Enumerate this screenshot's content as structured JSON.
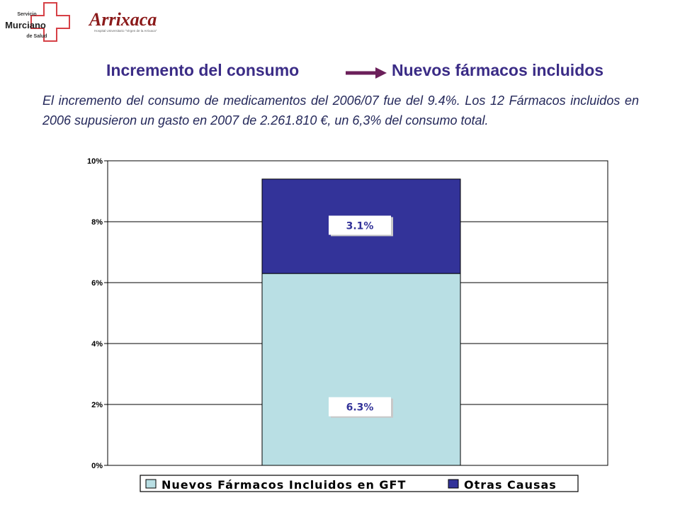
{
  "logos": {
    "org_line1": "Servicio",
    "org_line2": "Murciano",
    "org_line3": "de Salud",
    "hospital_name": "Arrixaca",
    "hospital_sub": "Hospital Universitario \"Virgen de la Arrixaca\"",
    "cross_color": "#d64046",
    "hospital_color": "#8b1a1a"
  },
  "heading": {
    "left": "Incremento del consumo",
    "right": "Nuevos fármacos incluidos",
    "color": "#3b2c86",
    "arrow_color": "#6b1f5a"
  },
  "body_text": "El incremento del consumo de medicamentos del 2006/07 fue del 9.4%. Los 12 Fármacos incluidos en 2006 supusieron un gasto en 2007 de 2.261.810 €, un 6,3% del consumo total.",
  "chart_data": {
    "type": "bar",
    "stacked": true,
    "categories": [
      ""
    ],
    "series": [
      {
        "name": "Nuevos Fármacos Incluidos en GFT",
        "values": [
          6.3
        ],
        "label": "6.3%",
        "color": "#b9dfe4"
      },
      {
        "name": "Otras Causas",
        "values": [
          3.1
        ],
        "label": "3.1%",
        "color": "#333399"
      }
    ],
    "ylim": [
      0,
      10
    ],
    "yticks": [
      "0%",
      "2%",
      "4%",
      "6%",
      "8%",
      "10%"
    ],
    "grid": true,
    "legend": "bottom",
    "title": "",
    "xlabel": "",
    "ylabel": ""
  }
}
